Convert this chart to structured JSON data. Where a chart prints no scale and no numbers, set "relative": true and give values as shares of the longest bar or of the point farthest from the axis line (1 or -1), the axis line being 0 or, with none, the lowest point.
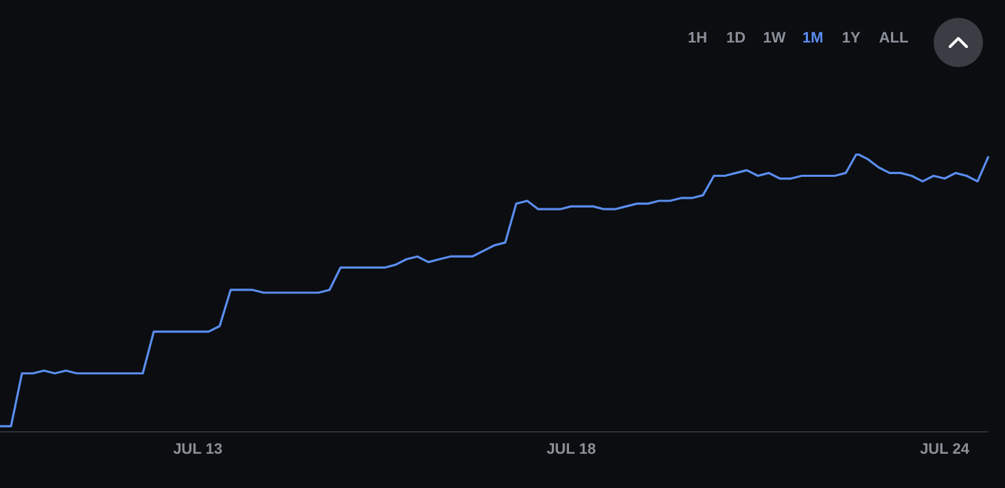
{
  "chart_data": {
    "type": "line",
    "relative": true,
    "grid": false,
    "legend": false,
    "marker": "none",
    "annotations": [
      "1H",
      "1D",
      "1W",
      "1M",
      "1Y",
      "ALL"
    ],
    "categories": [
      null,
      null,
      null,
      null,
      null,
      null,
      null,
      null,
      null,
      null,
      null,
      null,
      null,
      null,
      null,
      null,
      null,
      null,
      "JUL 13",
      null,
      null,
      null,
      null,
      null,
      null,
      null,
      null,
      null,
      null,
      null,
      null,
      null,
      null,
      null,
      null,
      null,
      null,
      null,
      null,
      null,
      null,
      null,
      null,
      null,
      null,
      null,
      null,
      null,
      null,
      null,
      null,
      null,
      "JUL 18",
      null,
      null,
      null,
      null,
      null,
      null,
      null,
      null,
      null,
      null,
      null,
      null,
      null,
      null,
      null,
      null,
      null,
      null,
      null,
      null,
      null,
      null,
      null,
      null,
      null,
      null,
      null,
      null,
      null,
      null,
      null,
      null,
      null,
      "JUL 24",
      null,
      null,
      null,
      null
    ],
    "series": [
      {
        "color": "#5b8def",
        "values": [
          0.02,
          0.02,
          0.21,
          0.21,
          0.22,
          0.21,
          0.22,
          0.21,
          0.21,
          0.21,
          0.21,
          0.21,
          0.21,
          0.21,
          0.36,
          0.36,
          0.36,
          0.36,
          0.36,
          0.36,
          0.38,
          0.51,
          0.51,
          0.51,
          0.5,
          0.5,
          0.5,
          0.5,
          0.5,
          0.5,
          0.51,
          0.59,
          0.59,
          0.59,
          0.59,
          0.59,
          0.6,
          0.62,
          0.63,
          0.61,
          0.62,
          0.63,
          0.63,
          0.63,
          0.65,
          0.67,
          0.68,
          0.82,
          0.83,
          0.8,
          0.8,
          0.8,
          0.81,
          0.81,
          0.81,
          0.8,
          0.8,
          0.81,
          0.82,
          0.82,
          0.83,
          0.83,
          0.84,
          0.84,
          0.85,
          0.92,
          0.92,
          0.93,
          0.94,
          0.92,
          0.93,
          0.91,
          0.91,
          0.92,
          0.92,
          0.92,
          0.92,
          0.93,
          1,
          0.98,
          0.95,
          0.93,
          0.93,
          0.92,
          0.9,
          0.92,
          0.91,
          0.93,
          0.92,
          0.9,
          0.99
        ]
      }
    ]
  }
}
